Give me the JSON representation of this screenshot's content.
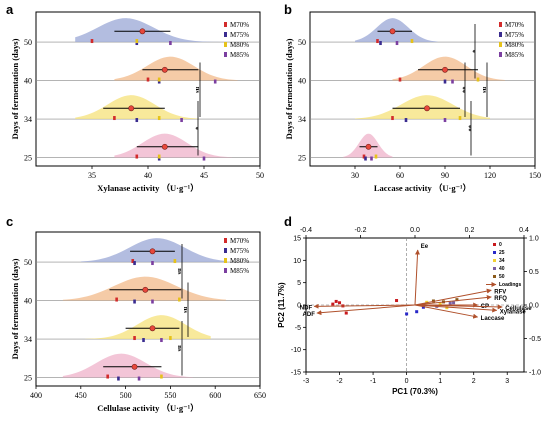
{
  "panels": {
    "a": {
      "letter": "a"
    },
    "b": {
      "letter": "b"
    },
    "c": {
      "letter": "c"
    },
    "d": {
      "letter": "d"
    }
  },
  "colors": {
    "group_colors": [
      "#e7ecf6",
      "#f2e4d4",
      "#fbf1c4",
      "#f3d9e4"
    ],
    "group_fills": [
      "#9aa7d6",
      "#f2b98a",
      "#f6e27a",
      "#efb1c9"
    ],
    "treatments": {
      "M70%": "#d22b2b",
      "M75%": "#3a2c8f",
      "M80%": "#e6c21a",
      "M85%": "#7b3fa0"
    },
    "arrow": "#b0512c"
  },
  "chart_data": [
    {
      "type": "raincloud",
      "panel": "a",
      "title": "",
      "xlabel": "Xylanase activity （U·g⁻¹）",
      "ylabel": "Days of fermentation (days)",
      "xlim": [
        30,
        50
      ],
      "xticks": [
        35,
        40,
        45,
        50
      ],
      "categories": [
        "50",
        "40",
        "34",
        "25"
      ],
      "legend": [
        "M70%",
        "M75%",
        "M80%",
        "M85%"
      ],
      "legend_position": "right",
      "groups": [
        {
          "day": "50",
          "mean": 39.5,
          "sd_low": 37.0,
          "sd_high": 42.0,
          "density_range": [
            33.5,
            46.5
          ],
          "density_peak": 38.0,
          "points": [
            {
              "x": 35.0,
              "t": "M70%"
            },
            {
              "x": 39.0,
              "t": "M75%"
            },
            {
              "x": 39.0,
              "t": "M80%"
            },
            {
              "x": 42.0,
              "t": "M85%"
            }
          ]
        },
        {
          "day": "40",
          "mean": 41.5,
          "sd_low": 39.5,
          "sd_high": 44.5,
          "density_range": [
            37.0,
            48.0
          ],
          "density_peak": 42.0,
          "points": [
            {
              "x": 40.0,
              "t": "M70%"
            },
            {
              "x": 41.0,
              "t": "M75%"
            },
            {
              "x": 41.0,
              "t": "M80%"
            },
            {
              "x": 46.0,
              "t": "M85%"
            }
          ]
        },
        {
          "day": "34",
          "mean": 38.5,
          "sd_low": 36.0,
          "sd_high": 41.5,
          "density_range": [
            33.5,
            44.5
          ],
          "density_peak": 38.5,
          "points": [
            {
              "x": 37.0,
              "t": "M70%"
            },
            {
              "x": 39.0,
              "t": "M75%"
            },
            {
              "x": 41.0,
              "t": "M80%"
            },
            {
              "x": 43.0,
              "t": "M85%"
            }
          ]
        },
        {
          "day": "25",
          "mean": 41.5,
          "sd_low": 39.0,
          "sd_high": 44.5,
          "density_range": [
            37.0,
            47.5
          ],
          "density_peak": 41.5,
          "points": [
            {
              "x": 39.0,
              "t": "M70%"
            },
            {
              "x": 41.0,
              "t": "M75%"
            },
            {
              "x": 41.0,
              "t": "M80%"
            },
            {
              "x": 45.0,
              "t": "M85%"
            }
          ]
        }
      ],
      "significance": [
        {
          "label": "ns",
          "from": "40",
          "to": "34"
        },
        {
          "label": "*",
          "from": "34",
          "to": "25"
        }
      ]
    },
    {
      "type": "raincloud",
      "panel": "b",
      "title": "",
      "xlabel": "Laccase activity （U·g⁻¹）",
      "ylabel": "Days of fermentation (days)",
      "xlim": [
        0,
        150
      ],
      "xticks": [
        30,
        60,
        90,
        120,
        150
      ],
      "categories": [
        "50",
        "40",
        "34",
        "25"
      ],
      "legend": [
        "M70%",
        "M75%",
        "M80%",
        "M85%"
      ],
      "legend_position": "right",
      "groups": [
        {
          "day": "50",
          "mean": 55,
          "sd_low": 45,
          "sd_high": 68,
          "density_range": [
            30,
            85
          ],
          "density_peak": 55,
          "points": [
            {
              "x": 45,
              "t": "M70%"
            },
            {
              "x": 47,
              "t": "M75%"
            },
            {
              "x": 68,
              "t": "M80%"
            },
            {
              "x": 58,
              "t": "M85%"
            }
          ]
        },
        {
          "day": "40",
          "mean": 90,
          "sd_low": 72,
          "sd_high": 112,
          "density_range": [
            55,
            130
          ],
          "density_peak": 90,
          "points": [
            {
              "x": 60,
              "t": "M70%"
            },
            {
              "x": 90,
              "t": "M75%"
            },
            {
              "x": 112,
              "t": "M80%"
            },
            {
              "x": 95,
              "t": "M85%"
            }
          ]
        },
        {
          "day": "34",
          "mean": 78,
          "sd_low": 55,
          "sd_high": 100,
          "density_range": [
            30,
            120
          ],
          "density_peak": 78,
          "points": [
            {
              "x": 55,
              "t": "M70%"
            },
            {
              "x": 64,
              "t": "M75%"
            },
            {
              "x": 100,
              "t": "M80%"
            },
            {
              "x": 90,
              "t": "M85%"
            }
          ]
        },
        {
          "day": "25",
          "mean": 39,
          "sd_low": 33,
          "sd_high": 45,
          "density_range": [
            22,
            55
          ],
          "density_peak": 39,
          "points": [
            {
              "x": 36,
              "t": "M70%"
            },
            {
              "x": 37,
              "t": "M75%"
            },
            {
              "x": 44,
              "t": "M80%"
            },
            {
              "x": 41,
              "t": "M85%"
            }
          ]
        }
      ],
      "significance": [
        {
          "label": "*",
          "from": "50",
          "to": "40"
        },
        {
          "label": "ns",
          "from": "40",
          "to": "34"
        },
        {
          "label": "**",
          "from": "40",
          "to": "34"
        },
        {
          "label": "**",
          "from": "34",
          "to": "25"
        }
      ]
    },
    {
      "type": "raincloud",
      "panel": "c",
      "title": "",
      "xlabel": "Cellulase activity （U·g⁻¹）",
      "ylabel": "Days of fermentation (days)",
      "xlim": [
        400,
        650
      ],
      "xticks": [
        400,
        450,
        500,
        550,
        600,
        650
      ],
      "categories": [
        "50",
        "40",
        "34",
        "25"
      ],
      "legend": [
        "M70%",
        "M75%",
        "M80%",
        "M85%"
      ],
      "legend_position": "top-right",
      "groups": [
        {
          "day": "50",
          "mean": 530,
          "sd_low": 505,
          "sd_high": 555,
          "density_range": [
            450,
            610
          ],
          "density_peak": 535,
          "points": [
            {
              "x": 508,
              "t": "M70%"
            },
            {
              "x": 510,
              "t": "M75%"
            },
            {
              "x": 555,
              "t": "M80%"
            },
            {
              "x": 530,
              "t": "M85%"
            }
          ]
        },
        {
          "day": "40",
          "mean": 522,
          "sd_low": 482,
          "sd_high": 562,
          "density_range": [
            430,
            612
          ],
          "density_peak": 522,
          "points": [
            {
              "x": 490,
              "t": "M70%"
            },
            {
              "x": 510,
              "t": "M75%"
            },
            {
              "x": 560,
              "t": "M80%"
            },
            {
              "x": 530,
              "t": "M85%"
            }
          ]
        },
        {
          "day": "34",
          "mean": 530,
          "sd_low": 500,
          "sd_high": 560,
          "density_range": [
            455,
            595
          ],
          "density_peak": 540,
          "points": [
            {
              "x": 510,
              "t": "M70%"
            },
            {
              "x": 520,
              "t": "M75%"
            },
            {
              "x": 550,
              "t": "M80%"
            },
            {
              "x": 540,
              "t": "M85%"
            }
          ]
        },
        {
          "day": "25",
          "mean": 510,
          "sd_low": 475,
          "sd_high": 540,
          "density_range": [
            430,
            575
          ],
          "density_peak": 495,
          "points": [
            {
              "x": 480,
              "t": "M70%"
            },
            {
              "x": 492,
              "t": "M75%"
            },
            {
              "x": 540,
              "t": "M80%"
            },
            {
              "x": 515,
              "t": "M85%"
            }
          ]
        }
      ],
      "significance": [
        {
          "label": "ns",
          "from": "50",
          "to": "40"
        },
        {
          "label": "ns",
          "from": "40",
          "to": "34"
        },
        {
          "label": "ns",
          "from": "34",
          "to": "25"
        }
      ]
    },
    {
      "type": "scatter",
      "panel": "d",
      "title": "",
      "xlabel": "PC1 (70.3%)",
      "ylabel": "PC2 (11.7%)",
      "xlim": [
        -3,
        3.5
      ],
      "ylim": [
        -15,
        15
      ],
      "xticks": [
        -3,
        -2,
        -1,
        0,
        1,
        2,
        3
      ],
      "yticks": [
        -15,
        -10,
        -5,
        0,
        5,
        10,
        15
      ],
      "top_xlim": [
        -0.4,
        0.4
      ],
      "top_xticks": [
        -0.4,
        -0.2,
        0.0,
        0.2,
        0.4
      ],
      "right_ylim": [
        -1.0,
        1.0
      ],
      "right_yticks": [
        -1.0,
        -0.5,
        0.0,
        0.5,
        1.0
      ],
      "legend": [
        "0",
        "25",
        "34",
        "40",
        "50",
        "Loadings"
      ],
      "legend_position": "top-right",
      "loadings": [
        {
          "name": "Ee",
          "x": 0.01,
          "y": 0.82
        },
        {
          "name": "RFV",
          "x": 0.28,
          "y": 0.22
        },
        {
          "name": "RFQ",
          "x": 0.28,
          "y": 0.12
        },
        {
          "name": "CP",
          "x": 0.23,
          "y": 0.0
        },
        {
          "name": "Cellulase",
          "x": 0.32,
          "y": -0.03
        },
        {
          "name": "Xylanase",
          "x": 0.3,
          "y": -0.08
        },
        {
          "name": "Laccase",
          "x": 0.23,
          "y": -0.18
        },
        {
          "name": "NDF",
          "x": -0.37,
          "y": -0.02
        },
        {
          "name": "ADF",
          "x": -0.36,
          "y": -0.12
        }
      ],
      "scores": [
        {
          "group": "0",
          "x": -2.1,
          "y": 0.8
        },
        {
          "group": "0",
          "x": -2.0,
          "y": 0.5
        },
        {
          "group": "0",
          "x": -1.9,
          "y": -0.2
        },
        {
          "group": "0",
          "x": -2.2,
          "y": 0.2
        },
        {
          "group": "0",
          "x": -1.8,
          "y": -1.8
        },
        {
          "group": "25",
          "x": 0.0,
          "y": -2.0
        },
        {
          "group": "25",
          "x": 0.3,
          "y": -1.5
        },
        {
          "group": "25",
          "x": 0.5,
          "y": -0.5
        },
        {
          "group": "34",
          "x": 0.6,
          "y": 0.6
        },
        {
          "group": "34",
          "x": 1.0,
          "y": 0.2
        },
        {
          "group": "34",
          "x": 1.2,
          "y": -0.6
        },
        {
          "group": "40",
          "x": 1.4,
          "y": 0.5
        },
        {
          "group": "40",
          "x": 0.9,
          "y": -0.3
        },
        {
          "group": "40",
          "x": 1.3,
          "y": 0.4
        },
        {
          "group": "50",
          "x": 0.8,
          "y": 0.9
        },
        {
          "group": "50",
          "x": 1.1,
          "y": 0.7
        },
        {
          "group": "50",
          "x": 1.5,
          "y": 1.2
        },
        {
          "group": "0",
          "x": -0.3,
          "y": 1.0
        }
      ],
      "group_colors": {
        "0": "#c8181d",
        "25": "#2828c8",
        "34": "#f2d030",
        "40": "#7a5fa3",
        "50": "#8b5a1a"
      }
    }
  ]
}
